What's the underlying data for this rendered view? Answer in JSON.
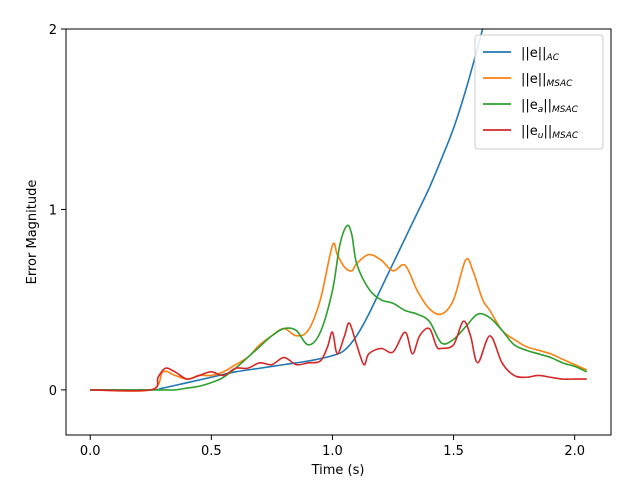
{
  "chart_data": {
    "type": "line",
    "title": "",
    "xlabel": "Time (s)",
    "ylabel": "Error Magnitude",
    "xlim": [
      -0.1,
      2.15
    ],
    "ylim": [
      -0.25,
      2.0
    ],
    "xticks": [
      0.0,
      0.5,
      1.0,
      1.5,
      2.0
    ],
    "xtick_labels": [
      "0.0",
      "0.5",
      "1.0",
      "1.5",
      "2.0"
    ],
    "yticks": [
      0,
      1,
      2
    ],
    "ytick_labels": [
      "0",
      "1",
      "2"
    ],
    "grid": false,
    "legend_position": "top-right",
    "series": [
      {
        "name": "||e||AC",
        "name_main": "||e||",
        "name_sub": "AC",
        "color": "#1f77b4",
        "x": [
          0.0,
          0.25,
          0.3,
          0.4,
          0.5,
          0.6,
          0.7,
          0.8,
          0.9,
          1.0,
          1.05,
          1.1,
          1.15,
          1.2,
          1.25,
          1.3,
          1.35,
          1.4,
          1.45,
          1.5,
          1.55,
          1.6,
          1.65,
          1.7
        ],
        "y": [
          0.0,
          0.0,
          0.01,
          0.04,
          0.07,
          0.1,
          0.12,
          0.14,
          0.16,
          0.19,
          0.22,
          0.3,
          0.42,
          0.56,
          0.7,
          0.84,
          0.98,
          1.12,
          1.28,
          1.45,
          1.66,
          1.9,
          2.15,
          2.4
        ]
      },
      {
        "name": "||e||MSAC",
        "name_main": "||e||",
        "name_sub": "MSAC",
        "color": "#ff7f0e",
        "x": [
          0.0,
          0.25,
          0.3,
          0.35,
          0.4,
          0.45,
          0.5,
          0.55,
          0.6,
          0.65,
          0.7,
          0.75,
          0.8,
          0.85,
          0.9,
          0.95,
          1.0,
          1.02,
          1.05,
          1.08,
          1.1,
          1.15,
          1.2,
          1.25,
          1.3,
          1.35,
          1.4,
          1.45,
          1.5,
          1.55,
          1.58,
          1.62,
          1.65,
          1.7,
          1.75,
          1.8,
          1.85,
          1.9,
          1.95,
          2.0,
          2.05
        ],
        "y": [
          0.0,
          0.0,
          0.1,
          0.08,
          0.06,
          0.08,
          0.08,
          0.1,
          0.14,
          0.18,
          0.25,
          0.3,
          0.34,
          0.3,
          0.33,
          0.5,
          0.8,
          0.75,
          0.68,
          0.66,
          0.7,
          0.75,
          0.72,
          0.66,
          0.69,
          0.55,
          0.45,
          0.42,
          0.5,
          0.72,
          0.66,
          0.5,
          0.44,
          0.33,
          0.28,
          0.24,
          0.22,
          0.2,
          0.17,
          0.14,
          0.11
        ]
      },
      {
        "name": "||ea||MSAC",
        "name_main": "||e",
        "name_sub1": "a",
        "name_mid": "||",
        "name_sub": "MSAC",
        "color": "#2ca02c",
        "x": [
          0.0,
          0.25,
          0.3,
          0.35,
          0.4,
          0.45,
          0.5,
          0.55,
          0.6,
          0.65,
          0.7,
          0.75,
          0.8,
          0.85,
          0.9,
          0.95,
          1.0,
          1.03,
          1.06,
          1.08,
          1.1,
          1.15,
          1.2,
          1.25,
          1.3,
          1.35,
          1.4,
          1.45,
          1.5,
          1.55,
          1.6,
          1.65,
          1.7,
          1.75,
          1.8,
          1.85,
          1.9,
          1.95,
          2.0,
          2.05
        ],
        "y": [
          0.0,
          0.0,
          0.0,
          0.0,
          0.01,
          0.02,
          0.04,
          0.07,
          0.12,
          0.18,
          0.24,
          0.3,
          0.34,
          0.33,
          0.25,
          0.32,
          0.55,
          0.8,
          0.91,
          0.86,
          0.7,
          0.56,
          0.5,
          0.48,
          0.44,
          0.42,
          0.38,
          0.26,
          0.28,
          0.35,
          0.42,
          0.4,
          0.33,
          0.25,
          0.22,
          0.2,
          0.18,
          0.15,
          0.13,
          0.1
        ]
      },
      {
        "name": "||eu||MSAC",
        "name_main": "||e",
        "name_sub1": "u",
        "name_mid": "||",
        "name_sub": "MSAC",
        "color": "#d62728",
        "x": [
          0.0,
          0.25,
          0.28,
          0.31,
          0.35,
          0.4,
          0.45,
          0.5,
          0.55,
          0.6,
          0.65,
          0.7,
          0.75,
          0.8,
          0.85,
          0.9,
          0.95,
          0.98,
          1.0,
          1.02,
          1.05,
          1.07,
          1.1,
          1.13,
          1.15,
          1.2,
          1.25,
          1.3,
          1.33,
          1.36,
          1.4,
          1.43,
          1.45,
          1.5,
          1.54,
          1.57,
          1.6,
          1.65,
          1.7,
          1.75,
          1.8,
          1.85,
          1.9,
          1.95,
          2.0,
          2.05
        ],
        "y": [
          0.0,
          0.0,
          0.07,
          0.12,
          0.1,
          0.06,
          0.08,
          0.1,
          0.08,
          0.12,
          0.12,
          0.15,
          0.14,
          0.18,
          0.14,
          0.15,
          0.16,
          0.24,
          0.32,
          0.2,
          0.3,
          0.37,
          0.25,
          0.14,
          0.2,
          0.23,
          0.21,
          0.32,
          0.2,
          0.3,
          0.34,
          0.24,
          0.23,
          0.25,
          0.38,
          0.3,
          0.15,
          0.3,
          0.15,
          0.08,
          0.07,
          0.08,
          0.07,
          0.06,
          0.06,
          0.06
        ]
      }
    ]
  }
}
